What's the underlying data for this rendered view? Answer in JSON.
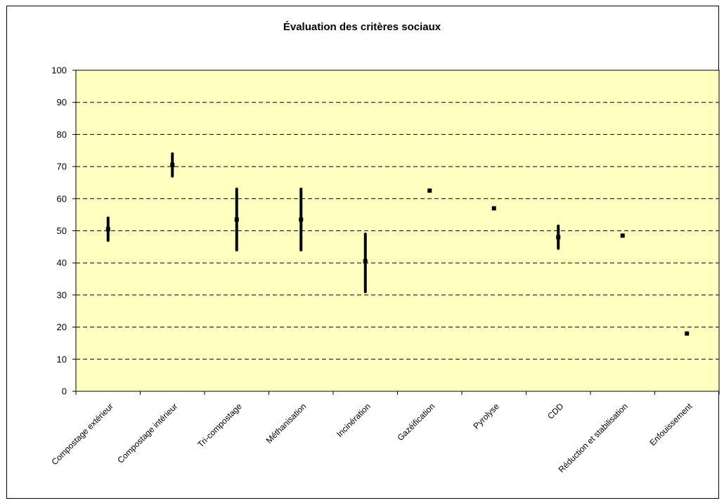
{
  "chart_data": {
    "type": "scatter",
    "title": "Évaluation des critères sociaux",
    "xlabel": "",
    "ylabel": "",
    "ylim": [
      0,
      100
    ],
    "yticks": [
      0,
      10,
      20,
      30,
      40,
      50,
      60,
      70,
      80,
      90,
      100
    ],
    "grid": true,
    "legend": "none",
    "colors": {
      "plot_bg": "#ffffc0",
      "marker": "#000000",
      "grid": "#000000"
    },
    "categories": [
      "Compostage extérieur",
      "Compostage intérieur",
      "Tri-compostage",
      "Méthanisation",
      "Incinération",
      "Gazéification",
      "Pyrolyse",
      "CDD",
      "Réduction et stabilisation",
      "Enfouissement"
    ],
    "values": [
      50.5,
      70.5,
      53.5,
      53.5,
      40.5,
      62.5,
      57,
      48,
      48.5,
      18
    ],
    "low": [
      47,
      67,
      44,
      44,
      31,
      62.5,
      57,
      44.5,
      48.5,
      18
    ],
    "high": [
      54,
      74,
      63,
      63,
      49,
      62.5,
      57,
      51.5,
      48.5,
      18
    ]
  }
}
